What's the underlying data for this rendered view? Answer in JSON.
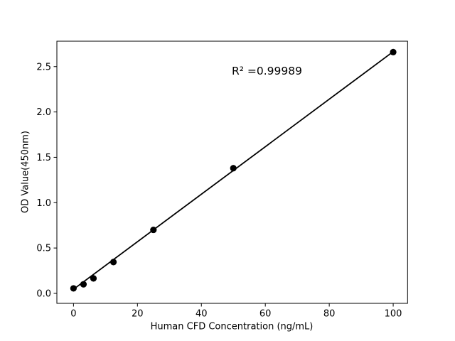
{
  "figure": {
    "background": "#ffffff",
    "text_color": "#000000"
  },
  "chart_data": {
    "type": "scatter",
    "title": "",
    "xlabel": "Human CFD Concentration (ng/mL)",
    "ylabel": "OD Value(450nm)",
    "annotation": "R² =0.99989",
    "r_squared": 0.99989,
    "x": [
      0,
      3.125,
      6.25,
      12.5,
      25,
      50,
      100
    ],
    "y": [
      0.055,
      0.1,
      0.165,
      0.345,
      0.7,
      1.38,
      2.66
    ],
    "fit_line": {
      "x": [
        0,
        100
      ],
      "y": [
        0.045,
        2.665
      ]
    },
    "xlim": [
      -5.2,
      104.5
    ],
    "ylim": [
      -0.11,
      2.78
    ],
    "xticks": [
      0,
      20,
      40,
      60,
      80,
      100
    ],
    "xtick_labels": [
      "0",
      "20",
      "40",
      "60",
      "80",
      "100"
    ],
    "yticks": [
      0,
      0.5,
      1.0,
      1.5,
      2.0,
      2.5
    ],
    "ytick_labels": [
      "0.0",
      "0.5",
      "1.0",
      "1.5",
      "2.0",
      "2.5"
    ],
    "grid": false,
    "legend_position": "none",
    "marker_color": "#000000",
    "line_color": "#000000",
    "spine_color": "#000000"
  }
}
